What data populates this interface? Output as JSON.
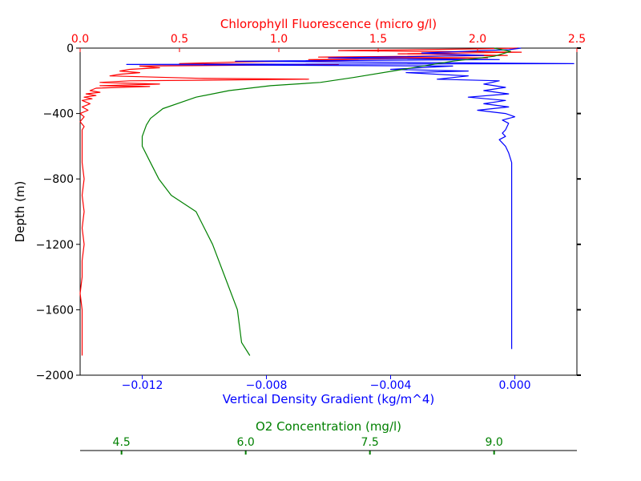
{
  "chart_data": {
    "type": "line",
    "colors": {
      "chlorophyll": "#ff0000",
      "density": "#0000ff",
      "oxygen": "#008000",
      "frame": "#000000"
    },
    "y_axis": {
      "label": "Depth (m)",
      "range": [
        -2000,
        0
      ],
      "ticks": [
        0,
        -400,
        -800,
        -1200,
        -1600,
        -2000
      ],
      "tick_labels": [
        "0",
        "−400",
        "−800",
        "−1200",
        "−1600",
        "−2000"
      ]
    },
    "x_top": {
      "label": "Chlorophyll Fluorescence (micro g/l)",
      "range": [
        0,
        2.5
      ],
      "ticks": [
        0,
        0.5,
        1.0,
        1.5,
        2.0,
        2.5
      ],
      "tick_labels": [
        "0.0",
        "0.5",
        "1.0",
        "1.5",
        "2.0",
        "2.5"
      ]
    },
    "x_bottom": {
      "label": "Vertical Density Gradient (kg/m^4)",
      "range": [
        -0.014,
        0.002
      ],
      "ticks": [
        -0.012,
        -0.008,
        -0.004,
        0.0
      ],
      "tick_labels": [
        "−0.012",
        "−0.008",
        "−0.004",
        "0.000"
      ]
    },
    "x_oxygen": {
      "label": "O2 Concentration (mg/l)",
      "range": [
        4.0,
        10.0
      ],
      "ticks": [
        4.5,
        6.0,
        7.5,
        9.0
      ],
      "tick_labels": [
        "4.5",
        "6.0",
        "7.5",
        "9.0"
      ]
    },
    "series": [
      {
        "key": "chlorophyll",
        "axis": "x_top",
        "points": [
          [
            2.2,
            0
          ],
          [
            2.0,
            -5
          ],
          [
            1.3,
            -15
          ],
          [
            2.22,
            -25
          ],
          [
            1.6,
            -35
          ],
          [
            2.15,
            -45
          ],
          [
            1.2,
            -55
          ],
          [
            2.05,
            -60
          ],
          [
            1.15,
            -70
          ],
          [
            1.4,
            -75
          ],
          [
            0.8,
            -85
          ],
          [
            0.5,
            -95
          ],
          [
            1.3,
            -100
          ],
          [
            0.3,
            -110
          ],
          [
            0.4,
            -120
          ],
          [
            0.25,
            -130
          ],
          [
            0.2,
            -140
          ],
          [
            0.3,
            -150
          ],
          [
            0.2,
            -160
          ],
          [
            0.15,
            -170
          ],
          [
            0.6,
            -185
          ],
          [
            1.15,
            -190
          ],
          [
            0.25,
            -200
          ],
          [
            0.1,
            -210
          ],
          [
            0.4,
            -220
          ],
          [
            0.1,
            -230
          ],
          [
            0.35,
            -235
          ],
          [
            0.08,
            -245
          ],
          [
            0.05,
            -260
          ],
          [
            0.1,
            -270
          ],
          [
            0.03,
            -280
          ],
          [
            0.08,
            -290
          ],
          [
            0.02,
            -300
          ],
          [
            0.06,
            -310
          ],
          [
            0.01,
            -320
          ],
          [
            0.05,
            -340
          ],
          [
            0.01,
            -360
          ],
          [
            0.04,
            -380
          ],
          [
            0.0,
            -400
          ],
          [
            0.02,
            -420
          ],
          [
            0.0,
            -450
          ],
          [
            0.02,
            -480
          ],
          [
            0.01,
            -500
          ],
          [
            0.01,
            -600
          ],
          [
            0.01,
            -700
          ],
          [
            0.02,
            -800
          ],
          [
            0.01,
            -900
          ],
          [
            0.02,
            -1000
          ],
          [
            0.01,
            -1100
          ],
          [
            0.02,
            -1200
          ],
          [
            0.01,
            -1300
          ],
          [
            0.01,
            -1400
          ],
          [
            0.0,
            -1500
          ],
          [
            0.01,
            -1600
          ],
          [
            0.01,
            -1700
          ],
          [
            0.01,
            -1800
          ],
          [
            0.01,
            -1880
          ]
        ]
      },
      {
        "key": "density",
        "axis": "x_bottom",
        "points": [
          [
            0.0002,
            0
          ],
          [
            -0.0002,
            -10
          ],
          [
            -0.003,
            -30
          ],
          [
            -0.001,
            -45
          ],
          [
            -0.006,
            -60
          ],
          [
            -0.0005,
            -70
          ],
          [
            -0.009,
            -80
          ],
          [
            0.0019,
            -95
          ],
          [
            -0.0125,
            -100
          ],
          [
            -0.002,
            -110
          ],
          [
            -0.004,
            -130
          ],
          [
            -0.0015,
            -140
          ],
          [
            -0.0035,
            -150
          ],
          [
            -0.0015,
            -170
          ],
          [
            -0.0025,
            -190
          ],
          [
            -0.0005,
            -200
          ],
          [
            -0.001,
            -220
          ],
          [
            -0.0003,
            -240
          ],
          [
            -0.001,
            -260
          ],
          [
            -0.0002,
            -280
          ],
          [
            -0.0015,
            -300
          ],
          [
            -0.0003,
            -320
          ],
          [
            -0.001,
            -340
          ],
          [
            -0.0002,
            -360
          ],
          [
            -0.0012,
            -380
          ],
          [
            -0.0003,
            -400
          ],
          [
            0.0,
            -420
          ],
          [
            -0.0004,
            -440
          ],
          [
            -0.0002,
            -460
          ],
          [
            -0.0003,
            -500
          ],
          [
            -0.0004,
            -520
          ],
          [
            -0.0003,
            -540
          ],
          [
            -0.0005,
            -560
          ],
          [
            -0.0003,
            -600
          ],
          [
            -0.0002,
            -640
          ],
          [
            -0.0001,
            -700
          ],
          [
            -0.0001,
            -800
          ],
          [
            -0.0001,
            -900
          ],
          [
            -0.0001,
            -1000
          ],
          [
            -0.0001,
            -1100
          ],
          [
            -0.0001,
            -1200
          ],
          [
            -0.0001,
            -1300
          ],
          [
            -0.0001,
            -1400
          ],
          [
            -0.0001,
            -1500
          ],
          [
            -0.0001,
            -1600
          ],
          [
            -0.0001,
            -1700
          ],
          [
            -0.0001,
            -1840
          ]
        ]
      },
      {
        "key": "oxygen",
        "axis": "x_oxygen",
        "points": [
          [
            9.0,
            0
          ],
          [
            9.2,
            -20
          ],
          [
            9.0,
            -50
          ],
          [
            8.5,
            -80
          ],
          [
            7.9,
            -130
          ],
          [
            7.3,
            -180
          ],
          [
            6.9,
            -210
          ],
          [
            6.3,
            -230
          ],
          [
            5.8,
            -260
          ],
          [
            5.4,
            -300
          ],
          [
            5.0,
            -370
          ],
          [
            4.85,
            -430
          ],
          [
            4.8,
            -470
          ],
          [
            4.75,
            -540
          ],
          [
            4.75,
            -600
          ],
          [
            4.85,
            -700
          ],
          [
            4.95,
            -800
          ],
          [
            5.1,
            -900
          ],
          [
            5.4,
            -1000
          ],
          [
            5.6,
            -1200
          ],
          [
            5.75,
            -1400
          ],
          [
            5.9,
            -1600
          ],
          [
            5.95,
            -1800
          ],
          [
            6.05,
            -1880
          ]
        ]
      }
    ]
  }
}
